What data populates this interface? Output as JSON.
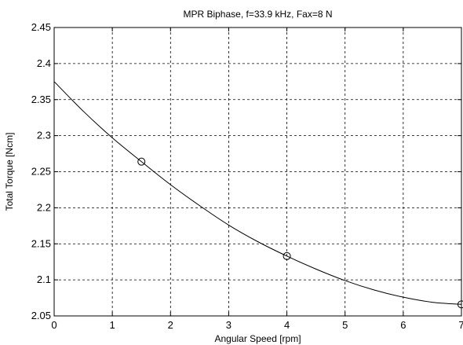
{
  "chart_data": {
    "type": "line",
    "title": "MPR Biphase, f=33.9 kHz, Fax=8 N",
    "xlabel": "Angular Speed [rpm]",
    "ylabel": "Total Torque [Ncm]",
    "xlim": [
      0,
      7
    ],
    "ylim": [
      2.05,
      2.45
    ],
    "grid": true,
    "x_ticks": [
      0,
      1,
      2,
      3,
      4,
      5,
      6,
      7
    ],
    "y_ticks": [
      2.05,
      2.1,
      2.15,
      2.2,
      2.25,
      2.3,
      2.35,
      2.4,
      2.45
    ],
    "x_tick_labels": [
      "0",
      "1",
      "2",
      "3",
      "4",
      "5",
      "6",
      "7"
    ],
    "y_tick_labels": [
      "2.05",
      "2.1",
      "2.15",
      "2.2",
      "2.25",
      "2.3",
      "2.35",
      "2.4",
      "2.45"
    ],
    "series": [
      {
        "style": "line",
        "color": "#000000",
        "x": [
          0,
          0.5,
          1,
          1.5,
          2,
          2.5,
          3,
          3.5,
          4,
          4.5,
          5,
          5.5,
          6,
          6.5,
          7
        ],
        "y": [
          2.375,
          2.334,
          2.297,
          2.264,
          2.232,
          2.203,
          2.176,
          2.153,
          2.133,
          2.115,
          2.099,
          2.086,
          2.076,
          2.069,
          2.066
        ]
      },
      {
        "style": "markers",
        "marker": "circle",
        "color": "#000000",
        "x": [
          1.5,
          4,
          7
        ],
        "y": [
          2.264,
          2.133,
          2.066
        ]
      }
    ]
  }
}
